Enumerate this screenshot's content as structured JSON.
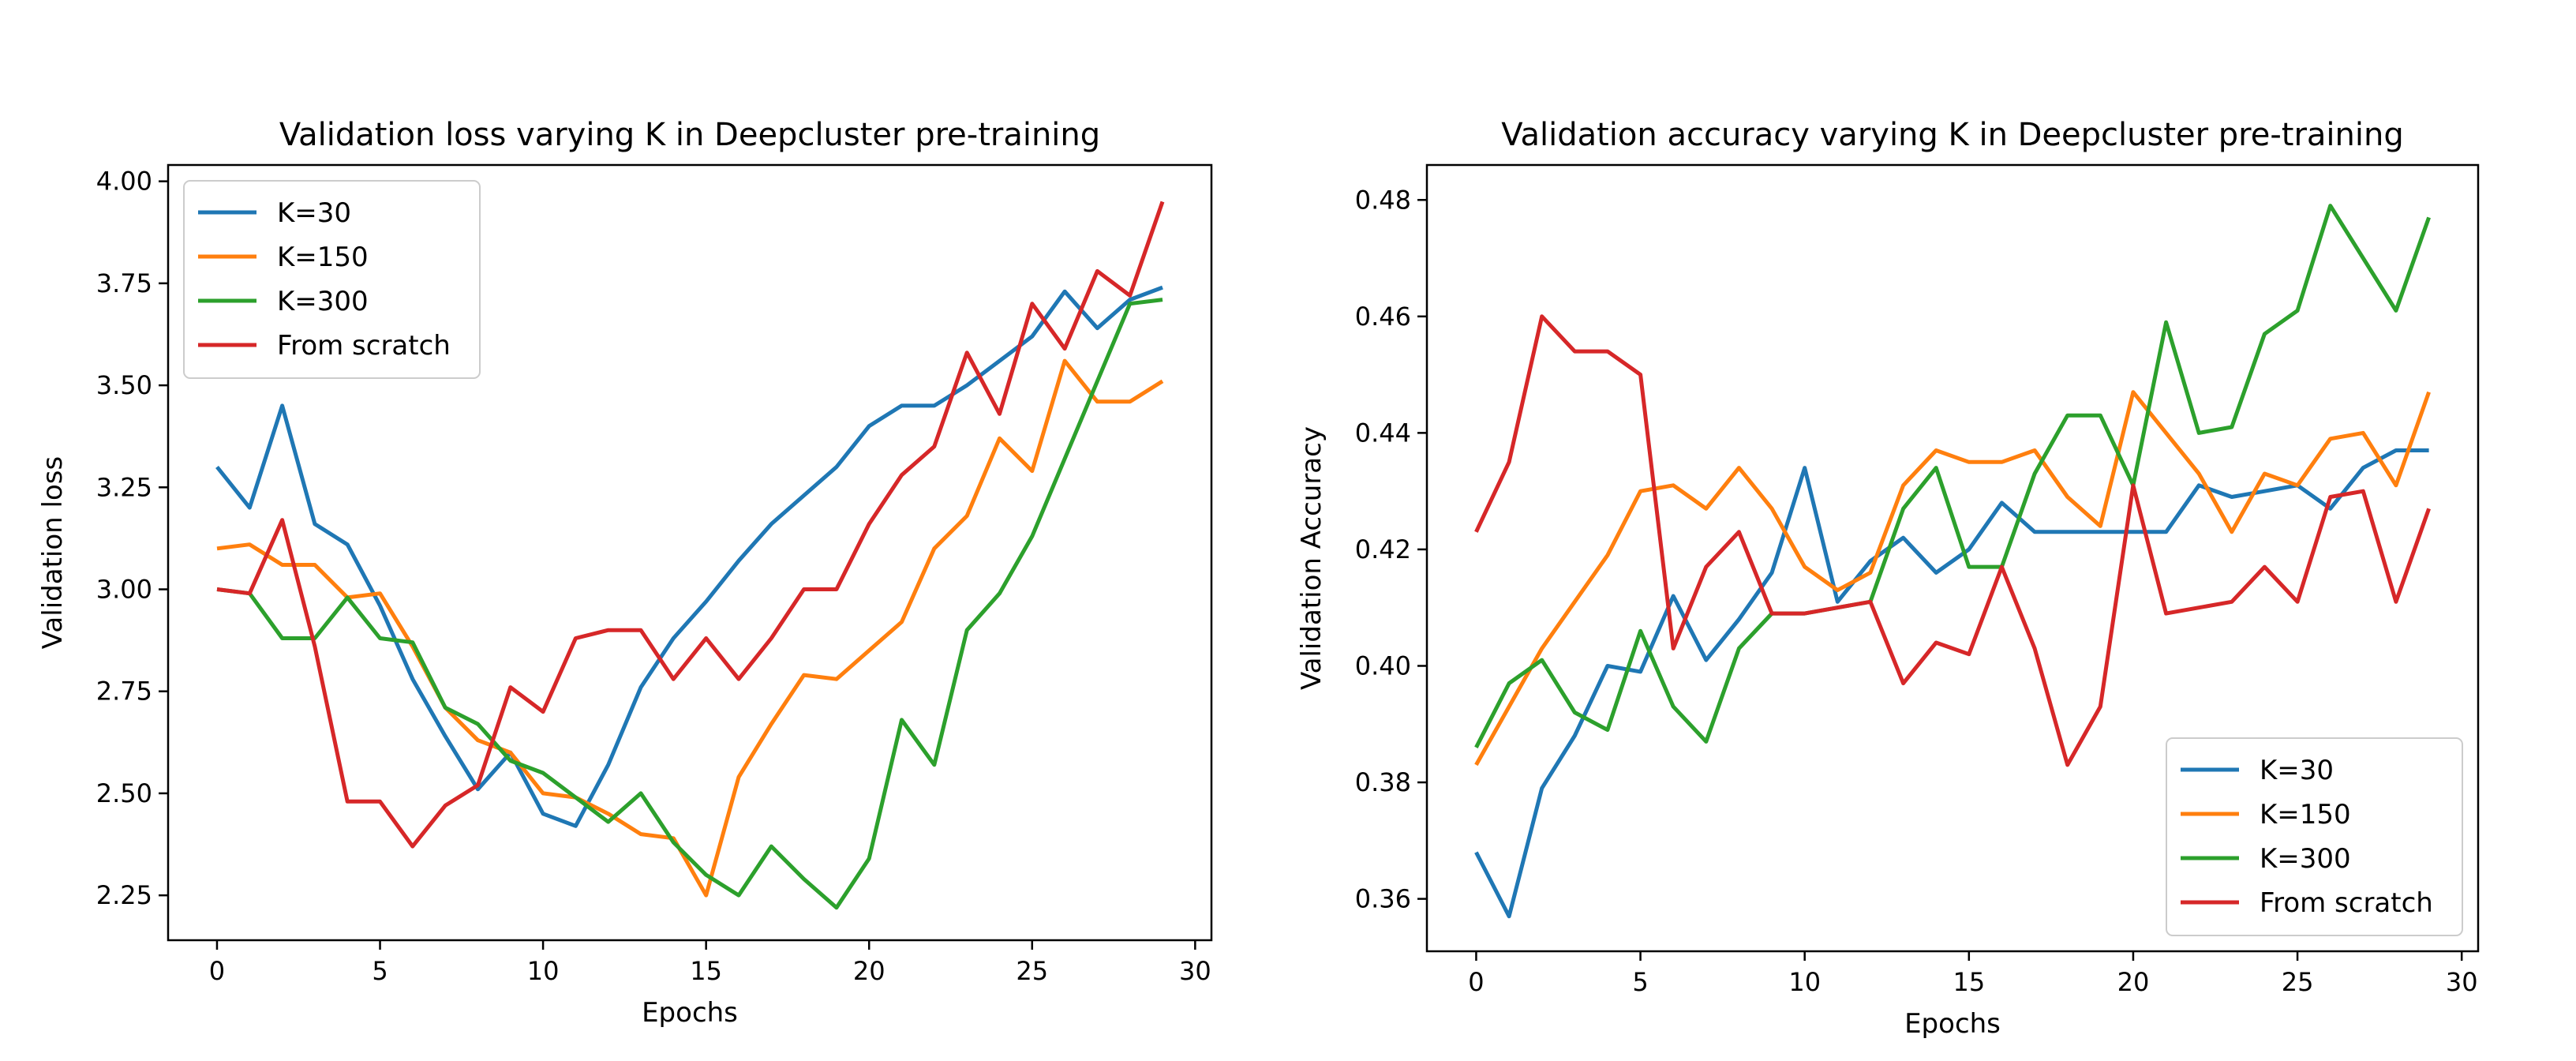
{
  "chart_data": [
    {
      "type": "line",
      "title": "Validation loss varying K in Deepcluster pre-training",
      "xlabel": "Epochs",
      "ylabel": "Validation loss",
      "xlim": [
        -1.5,
        30.5
      ],
      "ylim": [
        2.14,
        4.04
      ],
      "xticks": [
        "0",
        "5",
        "10",
        "15",
        "20",
        "25",
        "30"
      ],
      "yticks": [
        "2.25",
        "2.50",
        "2.75",
        "3.00",
        "3.25",
        "3.50",
        "3.75",
        "4.00"
      ],
      "legend_position": "top-left",
      "x": [
        0,
        1,
        2,
        3,
        4,
        5,
        6,
        7,
        8,
        9,
        10,
        11,
        12,
        13,
        14,
        15,
        16,
        17,
        18,
        19,
        20,
        21,
        22,
        23,
        24,
        25,
        26,
        27,
        28,
        29
      ],
      "series": [
        {
          "name": "K=30",
          "color": "#1f77b4",
          "values": [
            3.3,
            3.2,
            3.45,
            3.16,
            3.11,
            2.96,
            2.78,
            2.64,
            2.51,
            2.6,
            2.45,
            2.42,
            2.57,
            2.76,
            2.88,
            2.97,
            3.07,
            3.16,
            3.23,
            3.3,
            3.4,
            3.45,
            3.45,
            3.5,
            3.56,
            3.62,
            3.73,
            3.64,
            3.71,
            3.74
          ]
        },
        {
          "name": "K=150",
          "color": "#ff7f0e",
          "values": [
            3.1,
            3.11,
            3.06,
            3.06,
            2.98,
            2.99,
            2.86,
            2.71,
            2.63,
            2.6,
            2.5,
            2.49,
            2.45,
            2.4,
            2.39,
            2.25,
            2.54,
            2.67,
            2.79,
            2.78,
            2.85,
            2.92,
            3.1,
            3.18,
            3.37,
            3.29,
            3.56,
            3.46,
            3.46,
            3.51
          ]
        },
        {
          "name": "K=300",
          "color": "#2ca02c",
          "values": [
            3.0,
            2.99,
            2.88,
            2.88,
            2.98,
            2.88,
            2.87,
            2.71,
            2.67,
            2.58,
            2.55,
            2.49,
            2.43,
            2.5,
            2.38,
            2.3,
            2.25,
            2.37,
            2.29,
            2.22,
            2.34,
            2.68,
            2.57,
            2.9,
            2.99,
            3.13,
            3.32,
            3.51,
            3.7,
            3.71
          ]
        },
        {
          "name": "From scratch",
          "color": "#d62728",
          "values": [
            3.0,
            2.99,
            3.17,
            2.86,
            2.48,
            2.48,
            2.37,
            2.47,
            2.52,
            2.76,
            2.7,
            2.88,
            2.9,
            2.9,
            2.78,
            2.88,
            2.78,
            2.88,
            3.0,
            3.0,
            3.16,
            3.28,
            3.35,
            3.58,
            3.43,
            3.7,
            3.59,
            3.78,
            3.72,
            3.95
          ]
        }
      ]
    },
    {
      "type": "line",
      "title": "Validation accuracy varying K in Deepcluster pre-training",
      "xlabel": "Epochs",
      "ylabel": "Validation Accuracy",
      "xlim": [
        -1.5,
        30.5
      ],
      "ylim": [
        0.351,
        0.486
      ],
      "xticks": [
        "0",
        "5",
        "10",
        "15",
        "20",
        "25",
        "30"
      ],
      "yticks": [
        "0.36",
        "0.38",
        "0.40",
        "0.42",
        "0.44",
        "0.46",
        "0.48"
      ],
      "legend_position": "bottom-right",
      "x": [
        0,
        1,
        2,
        3,
        4,
        5,
        6,
        7,
        8,
        9,
        10,
        11,
        12,
        13,
        14,
        15,
        16,
        17,
        18,
        19,
        20,
        21,
        22,
        23,
        24,
        25,
        26,
        27,
        28,
        29
      ],
      "series": [
        {
          "name": "K=30",
          "color": "#1f77b4",
          "values": [
            0.368,
            0.357,
            0.379,
            0.388,
            0.4,
            0.399,
            0.412,
            0.401,
            0.408,
            0.416,
            0.434,
            0.411,
            0.418,
            0.422,
            0.416,
            0.42,
            0.428,
            0.423,
            0.423,
            0.423,
            0.423,
            0.423,
            0.431,
            0.429,
            0.43,
            0.431,
            0.427,
            0.434,
            0.437,
            0.437
          ]
        },
        {
          "name": "K=150",
          "color": "#ff7f0e",
          "values": [
            0.383,
            0.393,
            0.403,
            0.411,
            0.419,
            0.43,
            0.431,
            0.427,
            0.434,
            0.427,
            0.417,
            0.413,
            0.416,
            0.431,
            0.437,
            0.435,
            0.435,
            0.437,
            0.429,
            0.424,
            0.447,
            0.44,
            0.433,
            0.423,
            0.433,
            0.431,
            0.439,
            0.44,
            0.431,
            0.447
          ]
        },
        {
          "name": "K=300",
          "color": "#2ca02c",
          "values": [
            0.386,
            0.397,
            0.401,
            0.392,
            0.389,
            0.406,
            0.393,
            0.387,
            0.403,
            0.409,
            0.409,
            0.41,
            0.411,
            0.427,
            0.434,
            0.417,
            0.417,
            0.433,
            0.443,
            0.443,
            0.431,
            0.459,
            0.44,
            0.441,
            0.457,
            0.461,
            0.479,
            0.47,
            0.461,
            0.477
          ]
        },
        {
          "name": "From scratch",
          "color": "#d62728",
          "values": [
            0.423,
            0.435,
            0.46,
            0.454,
            0.454,
            0.45,
            0.403,
            0.417,
            0.423,
            0.409,
            0.409,
            0.41,
            0.411,
            0.397,
            0.404,
            0.402,
            0.417,
            0.403,
            0.383,
            0.393,
            0.431,
            0.409,
            0.41,
            0.411,
            0.417,
            0.411,
            0.429,
            0.43,
            0.411,
            0.427
          ]
        }
      ]
    }
  ]
}
